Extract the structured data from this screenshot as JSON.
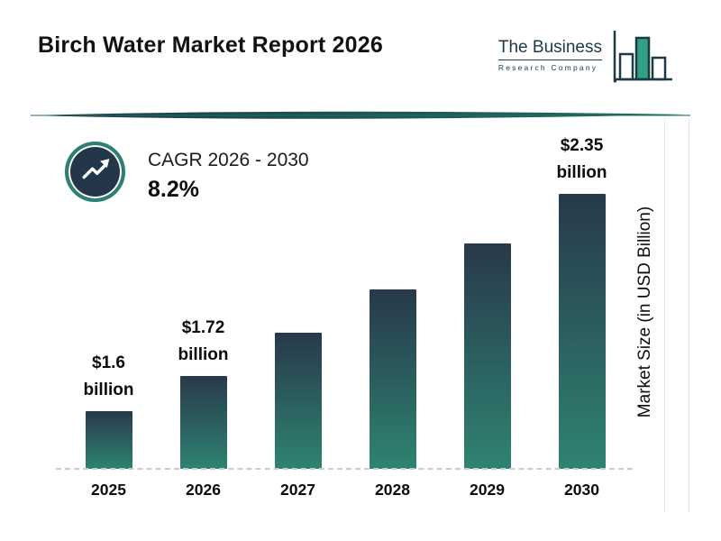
{
  "header": {
    "title": "Birch Water Market Report 2026",
    "logo": {
      "line1": "The Business",
      "line2": "Research Company"
    }
  },
  "cagr": {
    "label": "CAGR 2026 - 2030",
    "value": "8.2%"
  },
  "chart_data": {
    "type": "bar",
    "categories": [
      "2025",
      "2026",
      "2027",
      "2028",
      "2029",
      "2030"
    ],
    "values": [
      1.6,
      1.72,
      1.87,
      2.02,
      2.18,
      2.35
    ],
    "labeled_points": [
      {
        "index": 0,
        "amount": "$1.6",
        "unit": "billion"
      },
      {
        "index": 1,
        "amount": "$1.72",
        "unit": "billion"
      },
      {
        "index": 5,
        "amount": "$2.35",
        "unit": "billion"
      }
    ],
    "xlabel": "",
    "ylabel": "Market Size (in USD Billion)",
    "ylim_visual": [
      1.4,
      2.35
    ],
    "grid": "off",
    "legend": "none",
    "bar_gradient_top": "#28394a",
    "bar_gradient_bottom": "#2f8372"
  },
  "colors": {
    "accent_teal": "#2d8172",
    "dark_navy": "#24374a",
    "logo_ink": "#1c3a46",
    "logo_bar_fill": "#2fa284",
    "baseline_dash": "#cbcbcb"
  }
}
